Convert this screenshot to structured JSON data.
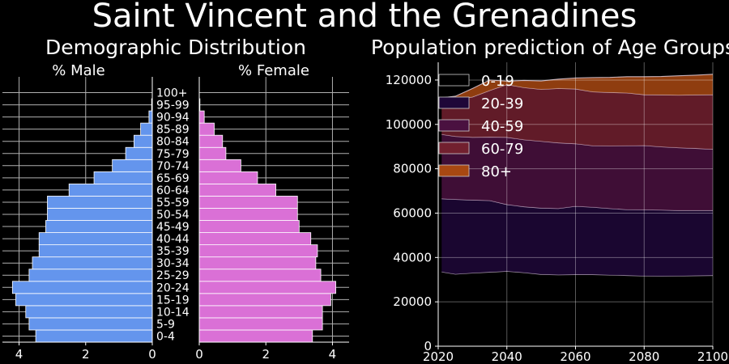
{
  "figure_title": "Saint Vincent and the Grenadines",
  "colors": {
    "background": "#000000",
    "male": "#6495ed",
    "female": "#da70d6",
    "areas": [
      "#000000",
      "#1e0738",
      "#4a1140",
      "#72202f",
      "#a84812"
    ]
  },
  "chart_data": [
    {
      "type": "bar",
      "orientation": "horizontal",
      "title": "Demographic Distribution",
      "left_label": "% Male",
      "right_label": "% Female",
      "categories": [
        "0-4",
        "5-9",
        "10-14",
        "15-19",
        "20-24",
        "25-29",
        "30-34",
        "35-39",
        "40-44",
        "45-49",
        "50-54",
        "55-59",
        "60-64",
        "65-69",
        "70-74",
        "75-79",
        "80-84",
        "85-89",
        "90-94",
        "95-99",
        "100+"
      ],
      "series": [
        {
          "name": "% Male",
          "values": [
            3.5,
            3.7,
            3.8,
            4.1,
            4.2,
            3.7,
            3.6,
            3.4,
            3.4,
            3.2,
            3.15,
            3.15,
            2.5,
            1.75,
            1.2,
            0.8,
            0.55,
            0.35,
            0.1,
            0.02,
            0.0
          ]
        },
        {
          "name": "% Female",
          "values": [
            3.4,
            3.7,
            3.7,
            3.95,
            4.1,
            3.65,
            3.5,
            3.55,
            3.35,
            3.0,
            2.95,
            2.95,
            2.3,
            1.75,
            1.25,
            0.8,
            0.7,
            0.45,
            0.15,
            0.02,
            0.0
          ]
        }
      ],
      "xticks_left": [
        "4",
        "2",
        "0"
      ],
      "xticks_right": [
        "0",
        "2",
        "4"
      ],
      "xlim": [
        0,
        4.5
      ],
      "grid": true
    },
    {
      "type": "area",
      "stacked": true,
      "title": "Population prediction of Age Groups",
      "x": [
        2021,
        2025,
        2030,
        2035,
        2040,
        2045,
        2050,
        2055,
        2060,
        2065,
        2070,
        2075,
        2080,
        2085,
        2090,
        2095,
        2100
      ],
      "series": [
        {
          "name": "0-19",
          "values": [
            33500,
            32500,
            33000,
            33400,
            33800,
            33200,
            32400,
            32200,
            32300,
            32300,
            32100,
            31900,
            31700,
            31600,
            31700,
            31800,
            31900
          ]
        },
        {
          "name": "20-39",
          "values": [
            33000,
            33700,
            32900,
            32300,
            30100,
            29700,
            29900,
            29900,
            30800,
            30400,
            30000,
            29700,
            29800,
            29800,
            29500,
            29400,
            29300
          ]
        },
        {
          "name": "40-59",
          "values": [
            29000,
            28400,
            28300,
            28600,
            30300,
            30200,
            30100,
            29600,
            28200,
            27700,
            28200,
            28800,
            29000,
            28500,
            28300,
            28000,
            27600
          ]
        },
        {
          "name": "60-79",
          "values": [
            16500,
            16600,
            18200,
            21000,
            23800,
            23500,
            23400,
            24500,
            24700,
            24300,
            24100,
            23800,
            22900,
            23400,
            23700,
            24100,
            24600
          ]
        },
        {
          "name": "80+",
          "values": [
            0,
            1500,
            3800,
            4700,
            1500,
            3200,
            3800,
            4200,
            4900,
            6400,
            6800,
            7300,
            8100,
            8300,
            8700,
            8900,
            9200
          ]
        }
      ],
      "xlim": [
        2020,
        2100
      ],
      "ylim": [
        0,
        128000
      ],
      "xticks": [
        2020,
        2040,
        2060,
        2080,
        2100
      ],
      "yticks": [
        0,
        20000,
        40000,
        60000,
        80000,
        100000,
        120000
      ],
      "legend": "top-left",
      "grid": true
    }
  ]
}
